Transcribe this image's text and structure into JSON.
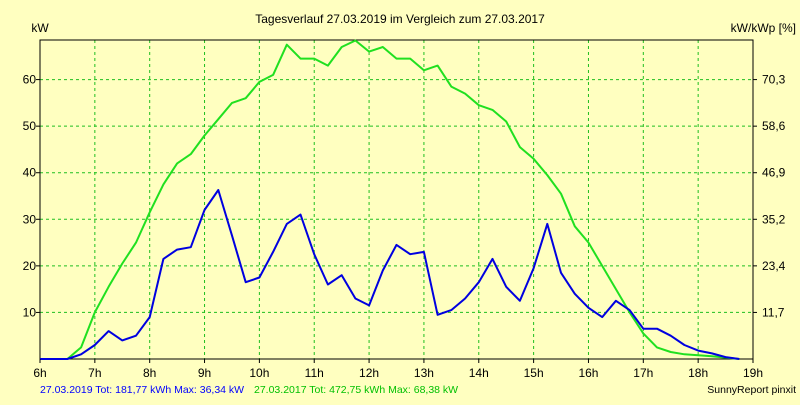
{
  "colors": {
    "background": "#ffffc0",
    "grid": "#1fbf1f",
    "series_2019": "#0000e0",
    "series_2017": "#20e020",
    "footer_2019": "#0000ff",
    "footer_2017": "#00c000"
  },
  "chart_data": {
    "type": "line",
    "title": "Tagesverlauf 27.03.2019 im Vergleich zum 27.03.2017",
    "ylabel_left": "kW",
    "ylabel_right": "kW/kWp [%]",
    "xlim": [
      6,
      19
    ],
    "ylim": [
      0,
      68.5
    ],
    "grid": true,
    "x_ticks": [
      {
        "v": 6,
        "label": "6h"
      },
      {
        "v": 7,
        "label": "7h"
      },
      {
        "v": 8,
        "label": "8h"
      },
      {
        "v": 9,
        "label": "9h"
      },
      {
        "v": 10,
        "label": "10h"
      },
      {
        "v": 11,
        "label": "11h"
      },
      {
        "v": 12,
        "label": "12h"
      },
      {
        "v": 13,
        "label": "13h"
      },
      {
        "v": 14,
        "label": "14h"
      },
      {
        "v": 15,
        "label": "15h"
      },
      {
        "v": 16,
        "label": "16h"
      },
      {
        "v": 17,
        "label": "17h"
      },
      {
        "v": 18,
        "label": "18h"
      },
      {
        "v": 19,
        "label": "19h"
      }
    ],
    "y_ticks_left": [
      {
        "v": 10,
        "label": "10"
      },
      {
        "v": 20,
        "label": "20"
      },
      {
        "v": 30,
        "label": "30"
      },
      {
        "v": 40,
        "label": "40"
      },
      {
        "v": 50,
        "label": "50"
      },
      {
        "v": 60,
        "label": "60"
      }
    ],
    "y_ticks_right": [
      {
        "v": 10,
        "label": "11,7"
      },
      {
        "v": 20,
        "label": "23,4"
      },
      {
        "v": 30,
        "label": "35,2"
      },
      {
        "v": 40,
        "label": "46,9"
      },
      {
        "v": 50,
        "label": "58,6"
      },
      {
        "v": 60,
        "label": "70,3"
      }
    ],
    "series": [
      {
        "key": "s2017",
        "color": "#20e020",
        "x": [
          6,
          6.25,
          6.5,
          6.75,
          7,
          7.25,
          7.5,
          7.75,
          8,
          8.25,
          8.5,
          8.75,
          9,
          9.25,
          9.5,
          9.75,
          10,
          10.25,
          10.5,
          10.75,
          11,
          11.25,
          11.5,
          11.75,
          12,
          12.25,
          12.5,
          12.75,
          13,
          13.25,
          13.5,
          13.75,
          14,
          14.25,
          14.5,
          14.75,
          15,
          15.25,
          15.5,
          15.75,
          16,
          16.25,
          16.5,
          16.75,
          17,
          17.25,
          17.5,
          17.75,
          18,
          18.25,
          18.5,
          18.75
        ],
        "values": [
          0,
          0,
          0,
          2.5,
          10,
          15.5,
          20.5,
          25,
          31.5,
          37.5,
          42,
          44,
          48,
          51.5,
          55,
          56,
          59.5,
          61,
          67.5,
          64.5,
          64.5,
          63,
          67,
          68.4,
          66,
          67,
          64.5,
          64.5,
          62,
          63,
          58.5,
          57,
          54.5,
          53.5,
          51,
          45.5,
          43,
          39.5,
          35.5,
          28.5,
          25,
          20,
          15,
          10,
          5.5,
          2.5,
          1.5,
          1,
          0.8,
          0.6,
          0.3,
          0
        ]
      },
      {
        "key": "s2019",
        "color": "#0000e0",
        "x": [
          6,
          6.25,
          6.5,
          6.75,
          7,
          7.25,
          7.5,
          7.75,
          8,
          8.25,
          8.5,
          8.75,
          9,
          9.25,
          9.5,
          9.75,
          10,
          10.25,
          10.5,
          10.75,
          11,
          11.25,
          11.5,
          11.75,
          12,
          12.25,
          12.5,
          12.75,
          13,
          13.25,
          13.5,
          13.75,
          14,
          14.25,
          14.5,
          14.75,
          15,
          15.25,
          15.5,
          15.75,
          16,
          16.25,
          16.5,
          16.75,
          17,
          17.25,
          17.5,
          17.75,
          18,
          18.25,
          18.5,
          18.75
        ],
        "values": [
          0,
          0,
          0,
          1,
          3,
          6,
          4,
          5,
          9,
          21.5,
          23.5,
          24,
          32,
          36.3,
          26.5,
          16.5,
          17.5,
          23,
          29,
          31,
          22.5,
          16,
          18,
          13,
          11.5,
          19,
          24.5,
          22.5,
          23,
          9.5,
          10.5,
          13,
          16.5,
          21.5,
          15.5,
          12.5,
          19.5,
          29,
          18.5,
          14,
          11,
          9,
          12.5,
          10.5,
          6.5,
          6.5,
          5,
          3,
          1.8,
          1.2,
          0.4,
          0
        ]
      }
    ],
    "footer": {
      "s2019": "27.03.2019 Tot: 181,77 kWh Max: 36,34 kW",
      "s2017": "27.03.2017 Tot: 472,75 kWh Max: 68,38 kW",
      "credit": "SunnyReport pinxit"
    }
  }
}
